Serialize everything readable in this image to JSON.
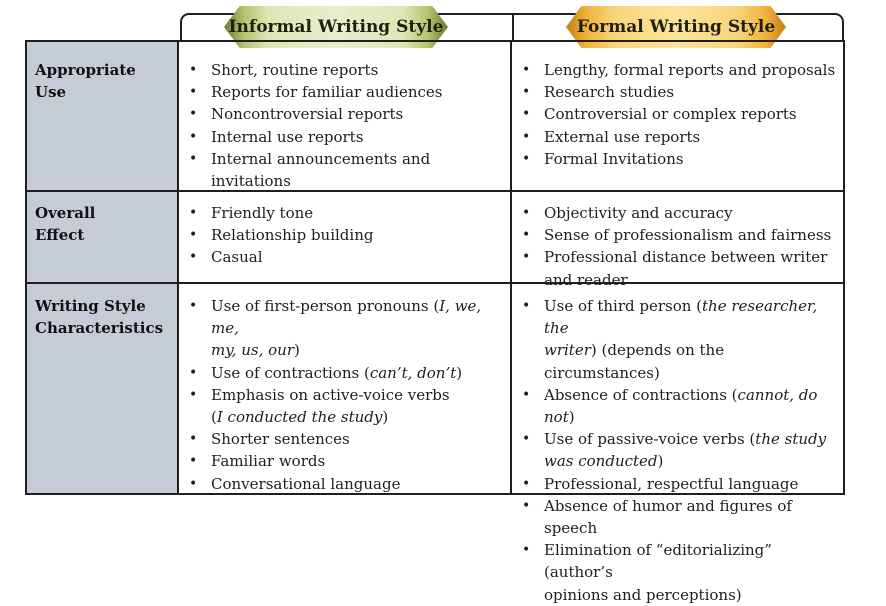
{
  "columns": {
    "informal": "Informal Writing Style",
    "formal": "Formal Writing Style"
  },
  "rows": [
    {
      "label_lines": [
        "Appropriate",
        "Use"
      ],
      "informal": [
        [
          "Short, routine reports"
        ],
        [
          "Reports for familiar audiences"
        ],
        [
          "Noncontroversial reports"
        ],
        [
          "Internal use reports"
        ],
        [
          "Internal announcements and",
          "invitations"
        ]
      ],
      "formal": [
        [
          "Lengthy, formal reports and proposals"
        ],
        [
          "Research studies"
        ],
        [
          "Controversial or complex reports"
        ],
        [
          "External use reports"
        ],
        [
          "Formal Invitations"
        ]
      ]
    },
    {
      "label_lines": [
        "Overall",
        "Effect"
      ],
      "informal": [
        [
          "Friendly tone"
        ],
        [
          "Relationship building"
        ],
        [
          "Casual"
        ]
      ],
      "formal": [
        [
          "Objectivity and accuracy"
        ],
        [
          "Sense of professionalism and fairness"
        ],
        [
          "Professional distance between writer",
          "and reader"
        ]
      ]
    },
    {
      "label_lines": [
        "Writing Style",
        "Characteristics"
      ],
      "informal": [
        {
          "a": "Use of first-person pronouns (",
          "b": "I, we, me,",
          "c": "",
          "d": "my, us, our",
          "e": ")"
        },
        {
          "a": "Use of contractions (",
          "b": "can’t, don’t",
          "c": ")"
        },
        {
          "a": "Emphasis on active-voice verbs",
          "d": "I conducted the study",
          "pre": "(",
          "e": ")"
        },
        [
          "Shorter sentences"
        ],
        [
          "Familiar words"
        ],
        [
          "Conversational language"
        ]
      ],
      "formal": [
        {
          "a": "Use of third person (",
          "b": "the researcher, the",
          "d": "writer",
          "e": ") (depends on the circumstances)"
        },
        {
          "a": "Absence of contractions (",
          "b": "cannot, do not",
          "c": ")"
        },
        {
          "a": "Use of passive-voice verbs (",
          "b": "the study",
          "d": "was conducted",
          "e": ")"
        },
        [
          "Professional, respectful language"
        ],
        [
          "Absence of humor and figures of speech"
        ],
        [
          "Elimination of “editorializing” (author’s",
          "opinions and perceptions)"
        ]
      ]
    }
  ]
}
